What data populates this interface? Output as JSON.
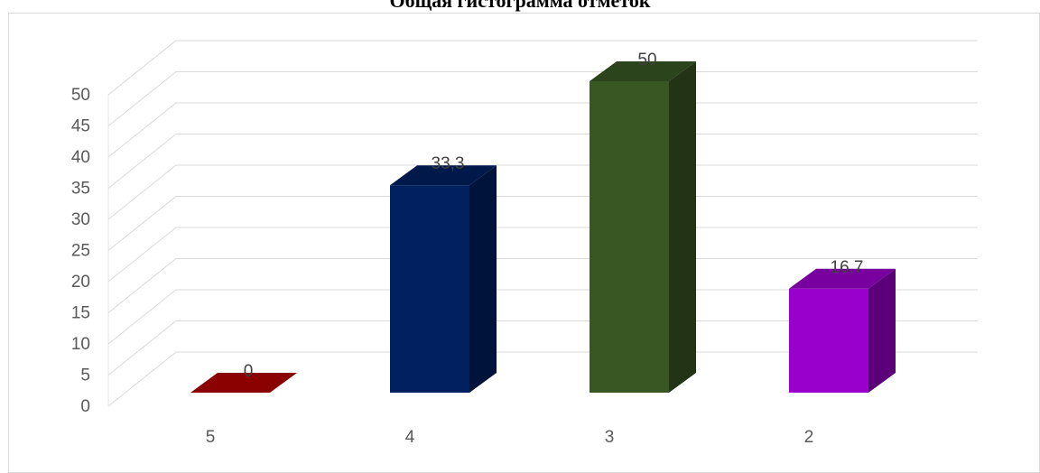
{
  "chart_data": {
    "type": "bar",
    "title": "Общая гистограмма отметок",
    "categories": [
      "5",
      "4",
      "3",
      "2"
    ],
    "values": [
      0,
      33.3,
      50,
      16.7
    ],
    "data_labels": [
      "0",
      "33,3",
      "50",
      "16,7"
    ],
    "bar_colors": [
      "#8b0000",
      "#002060",
      "#385723",
      "#9900cc"
    ],
    "y_ticks": [
      0,
      5,
      10,
      15,
      20,
      25,
      30,
      35,
      40,
      45,
      50
    ],
    "ylim": [
      0,
      50
    ],
    "xlabel": "",
    "ylabel": "",
    "grid": true,
    "legend": "none",
    "style": "3d-column"
  }
}
